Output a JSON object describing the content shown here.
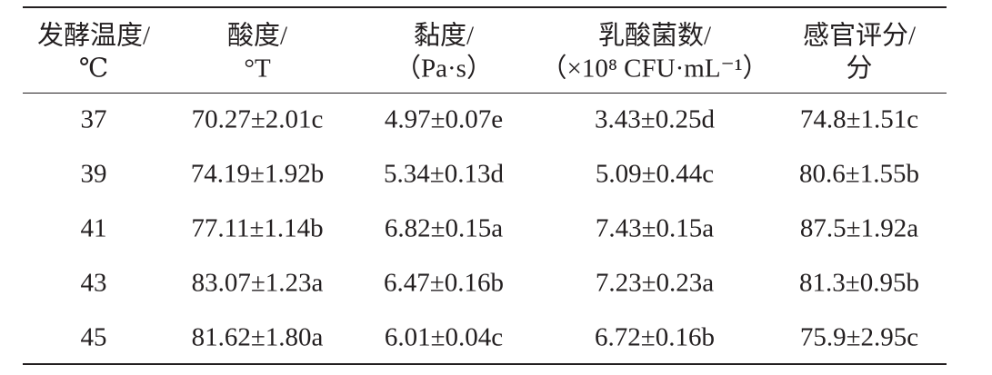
{
  "table": {
    "header": [
      [
        "发酵温度/",
        "℃"
      ],
      [
        "酸度/",
        "°T"
      ],
      [
        "黏度/",
        "（Pa·s）"
      ],
      [
        "乳酸菌数/",
        "（×10⁸ CFU·mL⁻¹）"
      ],
      [
        "感官评分/",
        "分"
      ]
    ],
    "rows": [
      [
        "37",
        "70.27±2.01c",
        "4.97±0.07e",
        "3.43±0.25d",
        "74.8±1.51c"
      ],
      [
        "39",
        "74.19±1.92b",
        "5.34±0.13d",
        "5.09±0.44c",
        "80.6±1.55b"
      ],
      [
        "41",
        "77.11±1.14b",
        "6.82±0.15a",
        "7.43±0.15a",
        "87.5±1.92a"
      ],
      [
        "43",
        "83.07±1.23a",
        "6.47±0.16b",
        "7.23±0.23a",
        "81.3±0.95b"
      ],
      [
        "45",
        "81.62±1.80a",
        "6.01±0.04c",
        "6.72±0.16b",
        "75.9±2.95c"
      ]
    ]
  }
}
